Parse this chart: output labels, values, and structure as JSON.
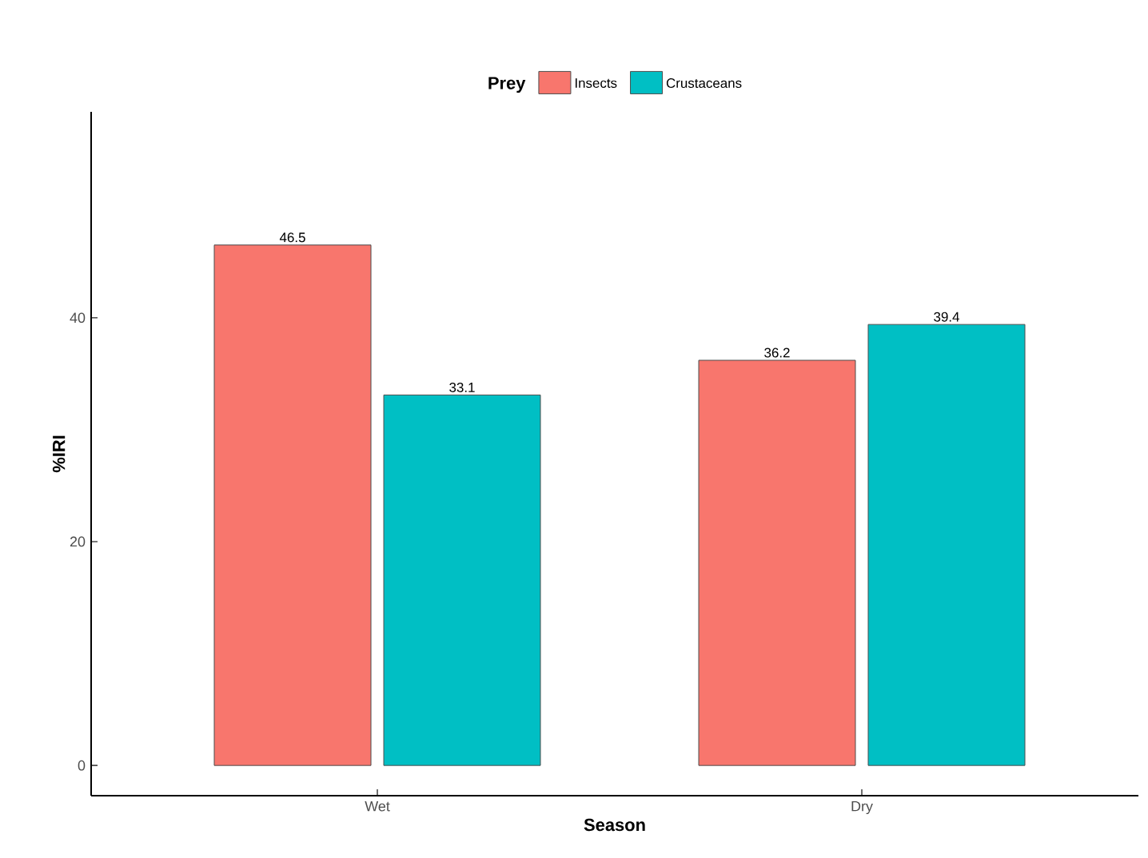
{
  "chart_data": {
    "type": "bar",
    "xlabel": "Season",
    "ylabel": "%IRI",
    "legend_title": "Prey",
    "legend": "top",
    "categories": [
      "Wet",
      "Dry"
    ],
    "series": [
      {
        "name": "Insects",
        "color": "#f8766d",
        "values": [
          46.5,
          36.2
        ]
      },
      {
        "name": "Crustaceans",
        "color": "#00bfc4",
        "values": [
          33.1,
          39.4
        ]
      }
    ],
    "ylim": [
      -2.7,
      58.4
    ],
    "yticks": [
      0,
      20,
      40
    ],
    "data_labels": true
  }
}
